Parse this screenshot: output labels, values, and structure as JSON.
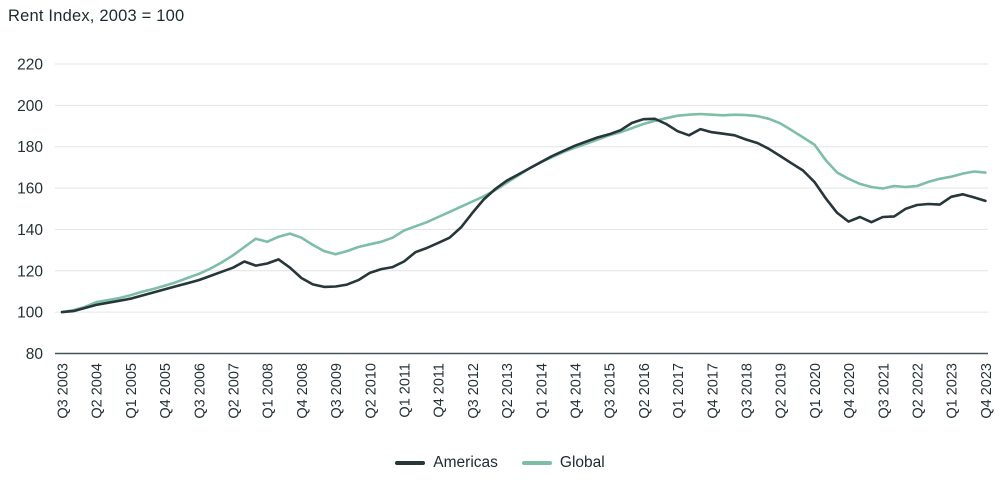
{
  "title": "Rent Index, 2003 = 100",
  "colors": {
    "americas": "#263639",
    "global": "#7ebea5",
    "text": "#243135",
    "gridline": "#e2e4e4",
    "axis_line": "#44565a",
    "background": "#ffffff"
  },
  "legend": {
    "items": [
      {
        "label": "Americas",
        "color": "#263639"
      },
      {
        "label": "Global",
        "color": "#7ebea5"
      }
    ]
  },
  "chart_data": {
    "type": "line",
    "title": "Rent Index, 2003 = 100",
    "ylabel": "",
    "xlabel": "",
    "ylim": [
      80,
      220
    ],
    "yticks": [
      80,
      100,
      120,
      140,
      160,
      180,
      200,
      220
    ],
    "grid": "horizontal",
    "legend_position": "bottom-center",
    "x_tick_step": 3,
    "x": [
      "Q3 2003",
      "Q4 2003",
      "Q1 2004",
      "Q2 2004",
      "Q3 2004",
      "Q4 2004",
      "Q1 2005",
      "Q2 2005",
      "Q3 2005",
      "Q4 2005",
      "Q1 2006",
      "Q2 2006",
      "Q3 2006",
      "Q4 2006",
      "Q1 2007",
      "Q2 2007",
      "Q3 2007",
      "Q4 2007",
      "Q1 2008",
      "Q2 2008",
      "Q3 2008",
      "Q4 2008",
      "Q1 2009",
      "Q2 2009",
      "Q3 2009",
      "Q4 2009",
      "Q1 2010",
      "Q2 2010",
      "Q3 2010",
      "Q4 2010",
      "Q1 2011",
      "Q2 2011",
      "Q3 2011",
      "Q4 2011",
      "Q1 2012",
      "Q2 2012",
      "Q3 2012",
      "Q4 2012",
      "Q1 2013",
      "Q2 2013",
      "Q3 2013",
      "Q4 2013",
      "Q1 2014",
      "Q2 2014",
      "Q3 2014",
      "Q4 2014",
      "Q1 2015",
      "Q2 2015",
      "Q3 2015",
      "Q4 2015",
      "Q1 2016",
      "Q2 2016",
      "Q3 2016",
      "Q4 2016",
      "Q1 2017",
      "Q2 2017",
      "Q3 2017",
      "Q4 2017",
      "Q1 2018",
      "Q2 2018",
      "Q3 2018",
      "Q4 2018",
      "Q1 2019",
      "Q2 2019",
      "Q3 2019",
      "Q4 2019",
      "Q1 2020",
      "Q2 2020",
      "Q3 2020",
      "Q4 2020",
      "Q1 2021",
      "Q2 2021",
      "Q3 2021",
      "Q4 2021",
      "Q1 2022",
      "Q2 2022",
      "Q3 2022",
      "Q4 2022",
      "Q1 2023",
      "Q2 2023",
      "Q3 2023",
      "Q4 2023"
    ],
    "x_tick_labels": [
      "Q3 2003",
      "Q2 2004",
      "Q1 2005",
      "Q4 2005",
      "Q3 2006",
      "Q2 2007",
      "Q1 2008",
      "Q4 2008",
      "Q3 2009",
      "Q2 2010",
      "Q1 2011",
      "Q4 2011",
      "Q3 2012",
      "Q2 2013",
      "Q1 2014",
      "Q4 2014",
      "Q3 2015",
      "Q2 2016",
      "Q1 2017",
      "Q4 2017",
      "Q3 2018",
      "Q2 2019",
      "Q1 2020",
      "Q4 2020",
      "Q3 2021",
      "Q2 2022",
      "Q1 2023",
      "Q4 2023"
    ],
    "series": [
      {
        "name": "Americas",
        "color": "#263639",
        "values": [
          100,
          100.5,
          102,
          103.5,
          104.5,
          105.5,
          106.5,
          108,
          109.5,
          111,
          112.5,
          114,
          115.5,
          117.5,
          119.5,
          121.5,
          124.5,
          122.5,
          123.5,
          125.5,
          121.5,
          116.5,
          113.4,
          112.2,
          112.4,
          113.3,
          115.5,
          119,
          120.8,
          121.8,
          124.5,
          129,
          131,
          133.5,
          136,
          141,
          148,
          154.5,
          159.5,
          163.5,
          166.5,
          169.5,
          172.5,
          175.5,
          178,
          180.5,
          182.5,
          184.5,
          186,
          188,
          191.5,
          193.3,
          193.5,
          191,
          187.5,
          185.5,
          188.5,
          187,
          186.3,
          185.5,
          183.5,
          181.8,
          179,
          175.5,
          172,
          168.5,
          163,
          155,
          148,
          143.8,
          146,
          143.5,
          146,
          146.3,
          150,
          151.8,
          152.3,
          152,
          155.8,
          157,
          155.5,
          153.8
        ]
      },
      {
        "name": "Global",
        "color": "#7ebea5",
        "values": [
          100,
          101,
          102.5,
          104.8,
          105.8,
          106.8,
          108.2,
          109.8,
          111.2,
          112.8,
          114.5,
          116.5,
          118.5,
          121,
          124,
          127.5,
          131.5,
          135.5,
          134,
          136.5,
          138,
          136,
          132.5,
          129.5,
          128,
          129.5,
          131.5,
          132.8,
          134,
          136,
          139.5,
          141.5,
          143.5,
          146,
          148.5,
          151,
          153.5,
          156,
          159,
          162.5,
          166,
          169.5,
          172.5,
          175,
          177.5,
          179.5,
          181.5,
          183.5,
          185.5,
          187,
          189,
          191,
          192.5,
          193.8,
          195,
          195.5,
          195.8,
          195.5,
          195.2,
          195.5,
          195.3,
          194.8,
          193.5,
          191.3,
          188,
          184.5,
          181,
          173.5,
          167.5,
          164.5,
          162,
          160.5,
          159.8,
          161,
          160.5,
          161,
          163,
          164.5,
          165.5,
          167,
          168,
          167.5
        ]
      }
    ]
  }
}
